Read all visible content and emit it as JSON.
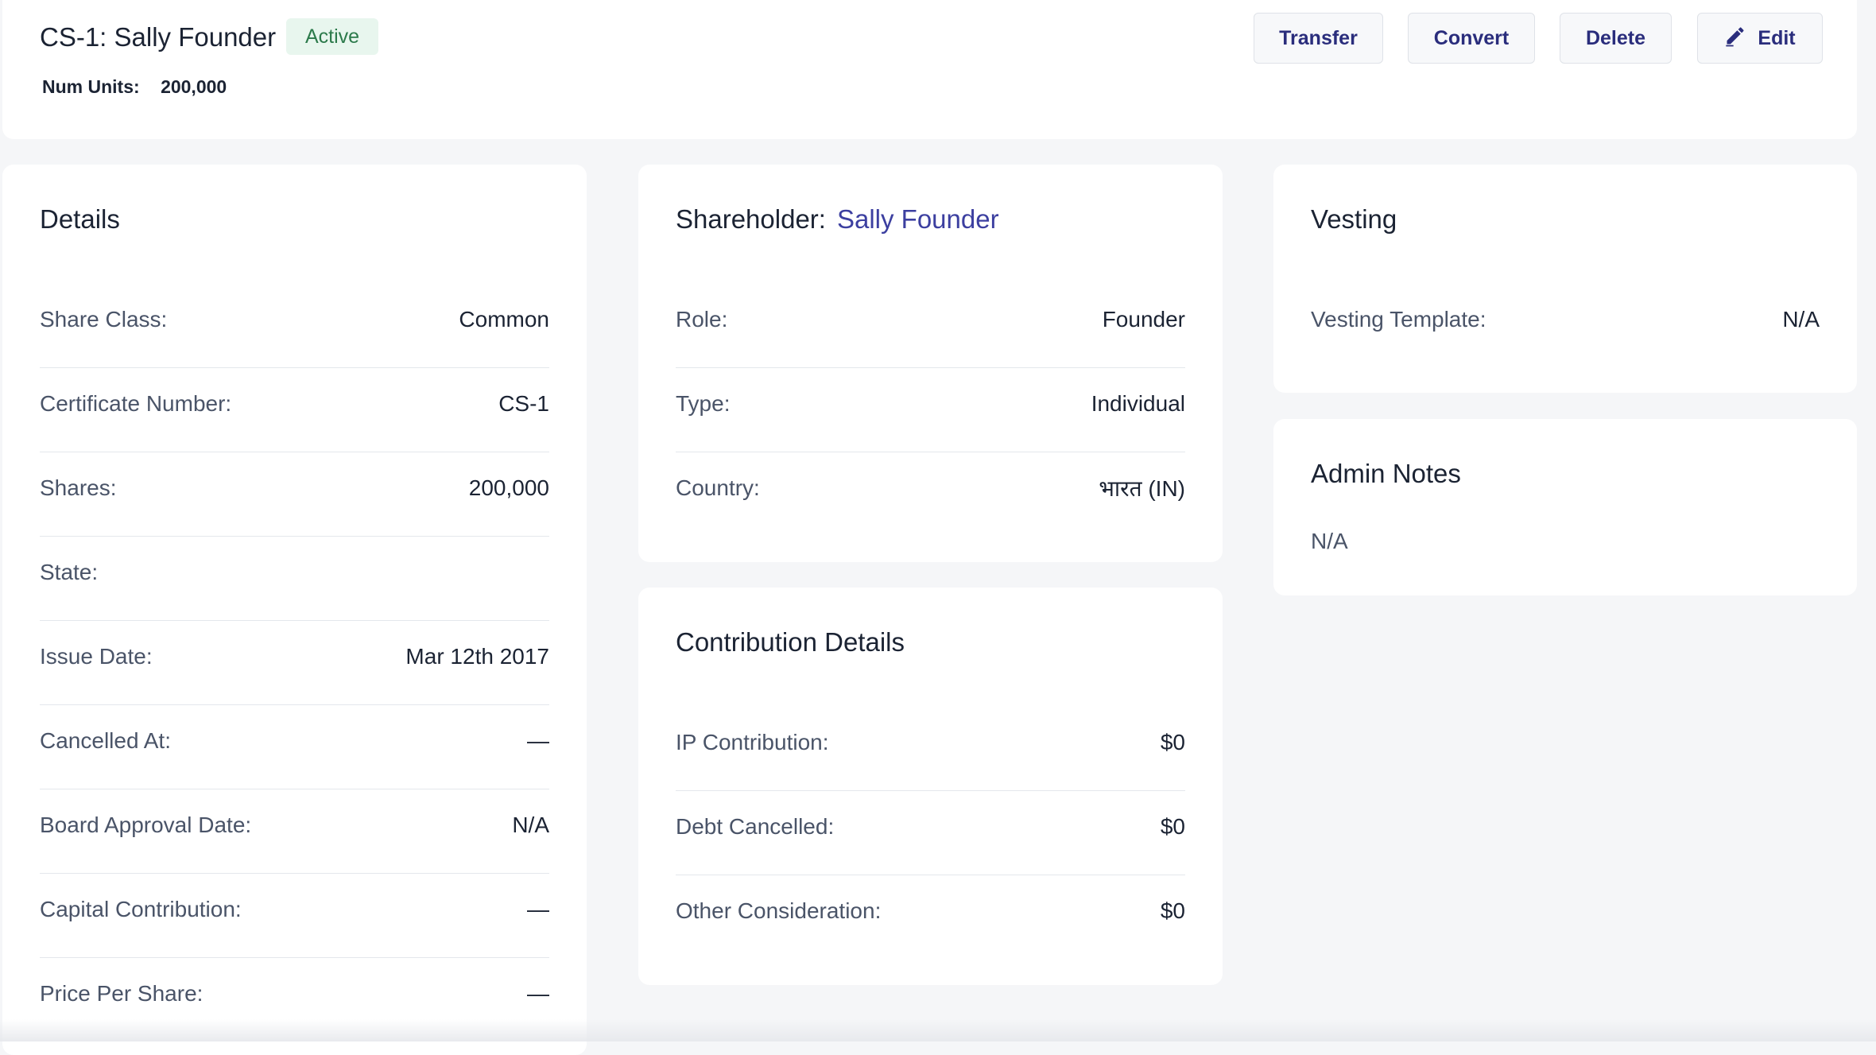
{
  "header": {
    "title": "CS-1: Sally Founder",
    "status": "Active",
    "units_label": "Num Units:",
    "units_value": "200,000",
    "buttons": {
      "transfer": "Transfer",
      "convert": "Convert",
      "delete": "Delete",
      "edit": "Edit"
    }
  },
  "details": {
    "title": "Details",
    "rows": [
      {
        "label": "Share Class:",
        "value": "Common"
      },
      {
        "label": "Certificate Number:",
        "value": "CS-1"
      },
      {
        "label": "Shares:",
        "value": "200,000"
      },
      {
        "label": "State:",
        "value": ""
      },
      {
        "label": "Issue Date:",
        "value": "Mar 12th 2017"
      },
      {
        "label": "Cancelled At:",
        "value": "—"
      },
      {
        "label": "Board Approval Date:",
        "value": "N/A"
      },
      {
        "label": "Capital Contribution:",
        "value": "—"
      },
      {
        "label": "Price Per Share:",
        "value": "—"
      }
    ]
  },
  "shareholder": {
    "title_label": "Shareholder:",
    "name": "Sally Founder",
    "rows": [
      {
        "label": "Role:",
        "value": "Founder"
      },
      {
        "label": "Type:",
        "value": "Individual"
      },
      {
        "label": "Country:",
        "value": "भारत (IN)"
      }
    ]
  },
  "contribution": {
    "title": "Contribution Details",
    "rows": [
      {
        "label": "IP Contribution:",
        "value": "$0"
      },
      {
        "label": "Debt Cancelled:",
        "value": "$0"
      },
      {
        "label": "Other Consideration:",
        "value": "$0"
      }
    ]
  },
  "vesting": {
    "title": "Vesting",
    "rows": [
      {
        "label": "Vesting Template:",
        "value": "N/A"
      }
    ]
  },
  "admin_notes": {
    "title": "Admin Notes",
    "text": "N/A"
  },
  "icons": {
    "edit": "pencil-icon"
  },
  "colors": {
    "accent": "#2a2d7c",
    "link": "#3c3fa0",
    "status_bg": "#e8f6ee",
    "status_text": "#2c7a4b"
  }
}
